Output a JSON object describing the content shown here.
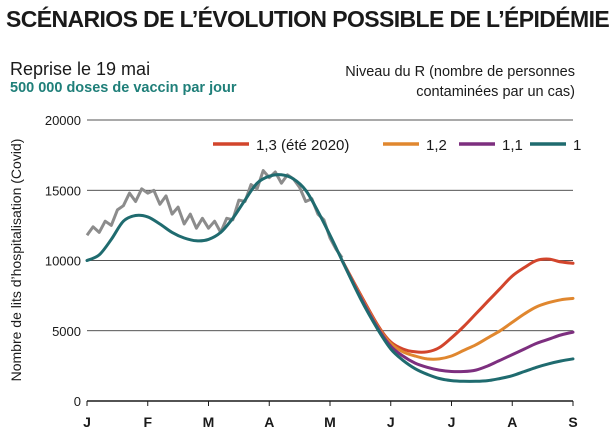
{
  "header": {
    "title": "SCÉNARIOS DE L’ÉVOLUTION POSSIBLE DE L’ÉPIDÉMIE",
    "subtitle": "Reprise le 19 mai",
    "subtitle2": "500 000 doses de vaccin par jour",
    "legend_title_line1": "Niveau du R (nombre de personnes",
    "legend_title_line2": "contaminées par un cas)"
  },
  "chart_data": {
    "type": "line",
    "ylabel": "Nombre de lits d’hospitalisation (Covid)",
    "ylim": [
      0,
      20000
    ],
    "yticks": [
      0,
      5000,
      10000,
      15000,
      20000
    ],
    "ytick_labels": [
      "0",
      "5000",
      "10000",
      "15000",
      "20000"
    ],
    "xlim": [
      0,
      8
    ],
    "xticks": [
      0,
      1,
      2,
      3,
      4,
      5,
      6,
      7,
      8
    ],
    "xtick_labels": [
      "J",
      "F",
      "M",
      "A",
      "M",
      "J",
      "J",
      "A",
      "S"
    ],
    "grid": "horizontal",
    "legend_position": "top-right",
    "colors": {
      "observed": "#8c8c8c",
      "r13": "#d2452c",
      "r12": "#e0872f",
      "r11": "#7d2f7f",
      "r1": "#1f6b6f"
    },
    "observed": {
      "x": [
        0,
        0.1,
        0.2,
        0.3,
        0.4,
        0.5,
        0.6,
        0.7,
        0.8,
        0.9,
        1.0,
        1.1,
        1.2,
        1.3,
        1.4,
        1.5,
        1.6,
        1.7,
        1.8,
        1.9,
        2.0,
        2.1,
        2.2,
        2.3,
        2.4,
        2.5,
        2.6,
        2.7,
        2.8,
        2.9,
        3.0,
        3.1,
        3.2,
        3.3,
        3.4,
        3.5,
        3.6,
        3.7,
        3.8,
        3.9,
        4.0,
        4.1,
        4.2
      ],
      "y": [
        11800,
        12400,
        12000,
        12800,
        12500,
        13600,
        13900,
        14800,
        14200,
        15100,
        14800,
        15000,
        14000,
        14600,
        13300,
        13800,
        12600,
        13300,
        12300,
        13000,
        12300,
        12800,
        12000,
        13000,
        12900,
        14300,
        14200,
        15400,
        15100,
        16400,
        15900,
        16300,
        15500,
        16100,
        15800,
        15200,
        14200,
        14400,
        13300,
        12900,
        11600,
        10800,
        10200
      ]
    },
    "series": [
      {
        "name": "1,3 (été 2020)",
        "x": [
          4.2,
          4.5,
          4.8,
          5.0,
          5.2,
          5.4,
          5.6,
          5.8,
          6.0,
          6.2,
          6.4,
          6.6,
          6.8,
          7.0,
          7.2,
          7.4,
          7.6,
          7.8,
          8.0
        ],
        "y": [
          10000,
          7600,
          5300,
          4200,
          3700,
          3500,
          3500,
          3800,
          4500,
          5300,
          6200,
          7100,
          8000,
          8900,
          9500,
          10000,
          10100,
          9900,
          9800
        ]
      },
      {
        "name": "1,2",
        "x": [
          4.2,
          4.5,
          4.8,
          5.0,
          5.2,
          5.4,
          5.6,
          5.8,
          6.0,
          6.2,
          6.4,
          6.6,
          6.8,
          7.0,
          7.2,
          7.4,
          7.6,
          7.8,
          8.0
        ],
        "y": [
          10000,
          7500,
          5200,
          4100,
          3500,
          3200,
          3000,
          3000,
          3200,
          3600,
          4000,
          4500,
          5000,
          5600,
          6200,
          6700,
          7000,
          7200,
          7300
        ]
      },
      {
        "name": "1,1",
        "x": [
          4.2,
          4.5,
          4.8,
          5.0,
          5.2,
          5.4,
          5.6,
          5.8,
          6.0,
          6.2,
          6.4,
          6.6,
          6.8,
          7.0,
          7.2,
          7.4,
          7.6,
          7.8,
          8.0
        ],
        "y": [
          10000,
          7400,
          5100,
          3900,
          3200,
          2700,
          2400,
          2200,
          2100,
          2100,
          2200,
          2500,
          2900,
          3300,
          3700,
          4100,
          4400,
          4700,
          4900
        ]
      },
      {
        "name": "1",
        "x": [
          0,
          0.2,
          0.4,
          0.6,
          0.8,
          1.0,
          1.2,
          1.4,
          1.6,
          1.8,
          2.0,
          2.2,
          2.4,
          2.6,
          2.8,
          3.0,
          3.2,
          3.4,
          3.6,
          3.8,
          4.0,
          4.2,
          4.5,
          4.8,
          5.0,
          5.2,
          5.4,
          5.6,
          5.8,
          6.0,
          6.2,
          6.4,
          6.6,
          6.8,
          7.0,
          7.2,
          7.4,
          7.6,
          7.8,
          8.0
        ],
        "y": [
          10000,
          10400,
          11500,
          12800,
          13200,
          13100,
          12600,
          12000,
          11600,
          11400,
          11500,
          12000,
          13000,
          14300,
          15500,
          16000,
          16100,
          15800,
          15000,
          13500,
          11800,
          10000,
          7300,
          5000,
          3700,
          2900,
          2300,
          1900,
          1600,
          1450,
          1400,
          1400,
          1450,
          1600,
          1800,
          2100,
          2400,
          2650,
          2850,
          3000
        ]
      }
    ]
  }
}
